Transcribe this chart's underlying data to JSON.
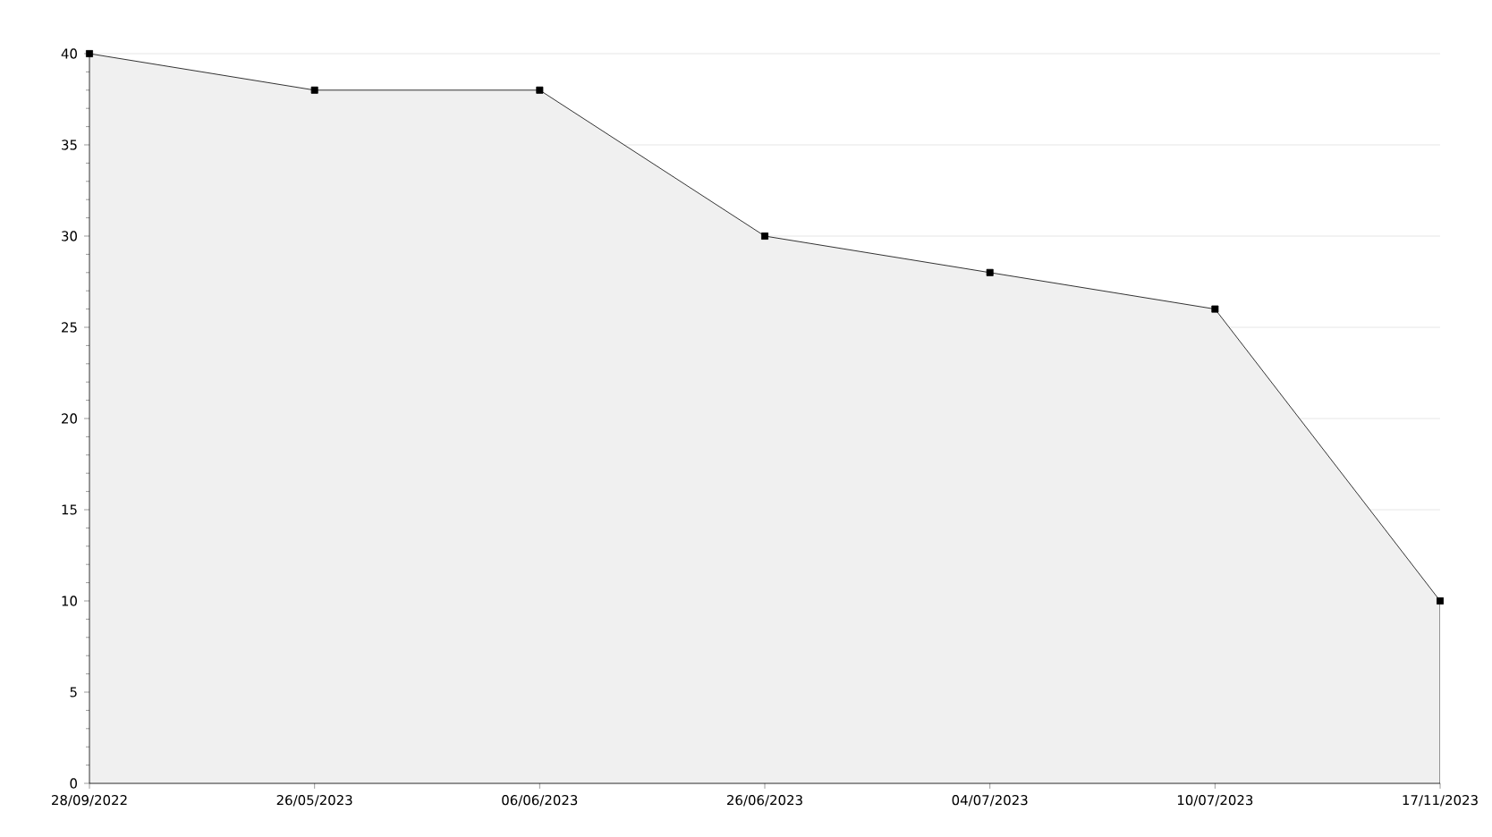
{
  "chart_data": {
    "type": "area",
    "categories": [
      "28/09/2022",
      "26/05/2023",
      "06/06/2023",
      "26/06/2023",
      "04/07/2023",
      "10/07/2023",
      "17/11/2023"
    ],
    "values": [
      40,
      38,
      38,
      30,
      28,
      26,
      10
    ],
    "color": "#f0f0f0",
    "ylim": [
      0,
      40
    ],
    "yticks": [
      0,
      5,
      10,
      15,
      20,
      25,
      30,
      35,
      40
    ],
    "grid": "y",
    "marker": "square",
    "line_style": "solid"
  }
}
